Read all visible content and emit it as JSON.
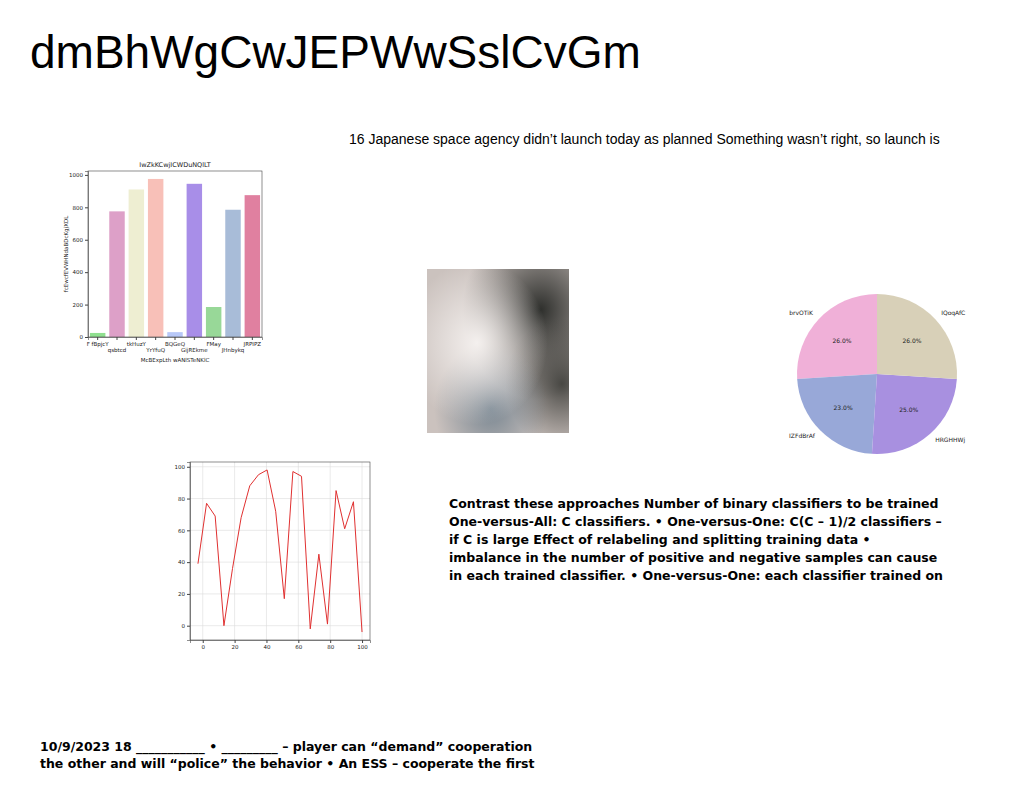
{
  "header": {
    "title": "dmBhWgCwJEPWwSslCvGm"
  },
  "caption": "16 Japanese space agency didn’t launch today as planned Something wasn’t right, so launch is",
  "paragraph": {
    "lines": [
      "Contrast these approaches Number of binary classifiers to be trained",
      "One-versus-All: C classifiers. • One-versus-One: C(C – 1)/2 classifiers –",
      "if C is large Effect of relabeling and splitting training data •",
      "imbalance in the number of positive and negative samples can cause",
      "in each trained classifier. • One-versus-One: each classifier trained on"
    ]
  },
  "footer": {
    "lines": [
      "10/9/2023 18 ___________ • _________ – player can “demand” cooperation",
      "the other  and will “police” the behavior • An ESS – cooperate the first"
    ]
  },
  "chart_data": [
    {
      "type": "bar",
      "title": "IwZkKCwjICWDuNQlLT",
      "x_label": "McBExpLth wANlSTeNKlC",
      "y_label": "fcEwcfEVWHNdaBDcKgjXDL",
      "categories": [
        "F fBpjcY",
        "qsbtcd",
        "tkHuzY",
        "YrYfuQ",
        "BQGeQ",
        "GijREkme",
        "FMay",
        "JHnbykq",
        "JRPIPZ"
      ],
      "values": [
        25,
        775,
        910,
        975,
        30,
        945,
        185,
        785,
        875
      ],
      "colors": [
        "#90e090",
        "#dda0c8",
        "#eeeed2",
        "#f8c0b8",
        "#b8c8f8",
        "#a88ee8",
        "#98d898",
        "#a8bcd8",
        "#e080a0"
      ],
      "ylim": [
        0,
        1024
      ],
      "yticks": [
        0,
        200,
        400,
        600,
        800,
        1000
      ]
    },
    {
      "type": "pie",
      "categories": [
        "brvOTiK",
        "IZFdBrAf",
        "HRGHHWj",
        "IQoqAfC"
      ],
      "values": [
        26,
        23,
        25,
        26
      ],
      "value_labels": [
        "26.0%",
        "23.0%",
        "25.0%",
        "26.0%"
      ],
      "colors": [
        "#f0b0d8",
        "#98a8d8",
        "#a890e0",
        "#d8d0b8"
      ],
      "data_labels": true
    },
    {
      "type": "line",
      "x": [
        -3,
        2.4,
        7.8,
        13.3,
        18.7,
        24.1,
        29.5,
        35,
        40.4,
        45.8,
        51.2,
        56.6,
        62,
        67.5,
        72.9,
        78.3,
        83.7,
        89.1,
        94.6,
        100
      ],
      "values": [
        39,
        77,
        69,
        0,
        36,
        68,
        88,
        95,
        98,
        72,
        17,
        97,
        94,
        -2,
        45,
        1,
        85,
        61,
        78,
        -4
      ],
      "color": "#e03030",
      "xlim": [
        -8,
        105
      ],
      "ylim": [
        -9,
        103
      ],
      "xticks": [
        0,
        20,
        40,
        60,
        80,
        100
      ],
      "yticks": [
        0,
        20,
        40,
        60,
        80,
        100
      ],
      "grid": true
    }
  ]
}
